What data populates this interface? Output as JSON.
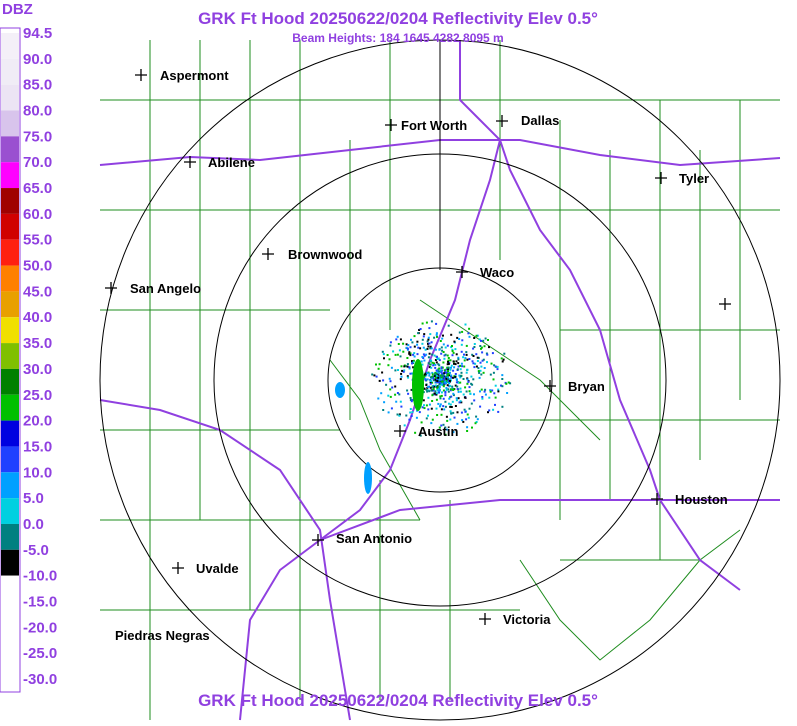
{
  "header": {
    "title": "GRK Ft Hood 20250622/0204 Reflectivity Elev 0.5°",
    "subtitle": "Beam Heights: 184 1645 4282 8095 m"
  },
  "legend": {
    "title": "DBZ",
    "labels": [
      "94.5",
      "90.0",
      "85.0",
      "80.0",
      "75.0",
      "70.0",
      "65.0",
      "60.0",
      "55.0",
      "50.0",
      "45.0",
      "40.0",
      "35.0",
      "30.0",
      "25.0",
      "20.0",
      "15.0",
      "10.0",
      "5.0",
      "0.0",
      "-5.0",
      "-10.0",
      "-15.0",
      "-20.0",
      "-25.0",
      "-30.0"
    ],
    "colors": [
      "#f4f0f8",
      "#f0ecf6",
      "#ece4f4",
      "#d8c4ec",
      "#9a50d0",
      "#ff00ff",
      "#a00000",
      "#d00000",
      "#ff2010",
      "#ff8000",
      "#e8a000",
      "#f0e000",
      "#80c000",
      "#008000",
      "#00c000",
      "#0000e0",
      "#2040ff",
      "#00a0ff",
      "#00d0e0",
      "#008080",
      "#000000",
      "#ffffff",
      "#ffffff",
      "#ffffff",
      "#ffffff"
    ]
  },
  "cities": [
    "Aspermont",
    "Abilene",
    "Fort Worth",
    "Dallas",
    "Tyler",
    "Brownwood",
    "Waco",
    "San Angelo",
    "Bryan",
    "Austin",
    "San Antonio",
    "Uvalde",
    "Houston",
    "Victoria",
    "Piedras Negras"
  ]
}
